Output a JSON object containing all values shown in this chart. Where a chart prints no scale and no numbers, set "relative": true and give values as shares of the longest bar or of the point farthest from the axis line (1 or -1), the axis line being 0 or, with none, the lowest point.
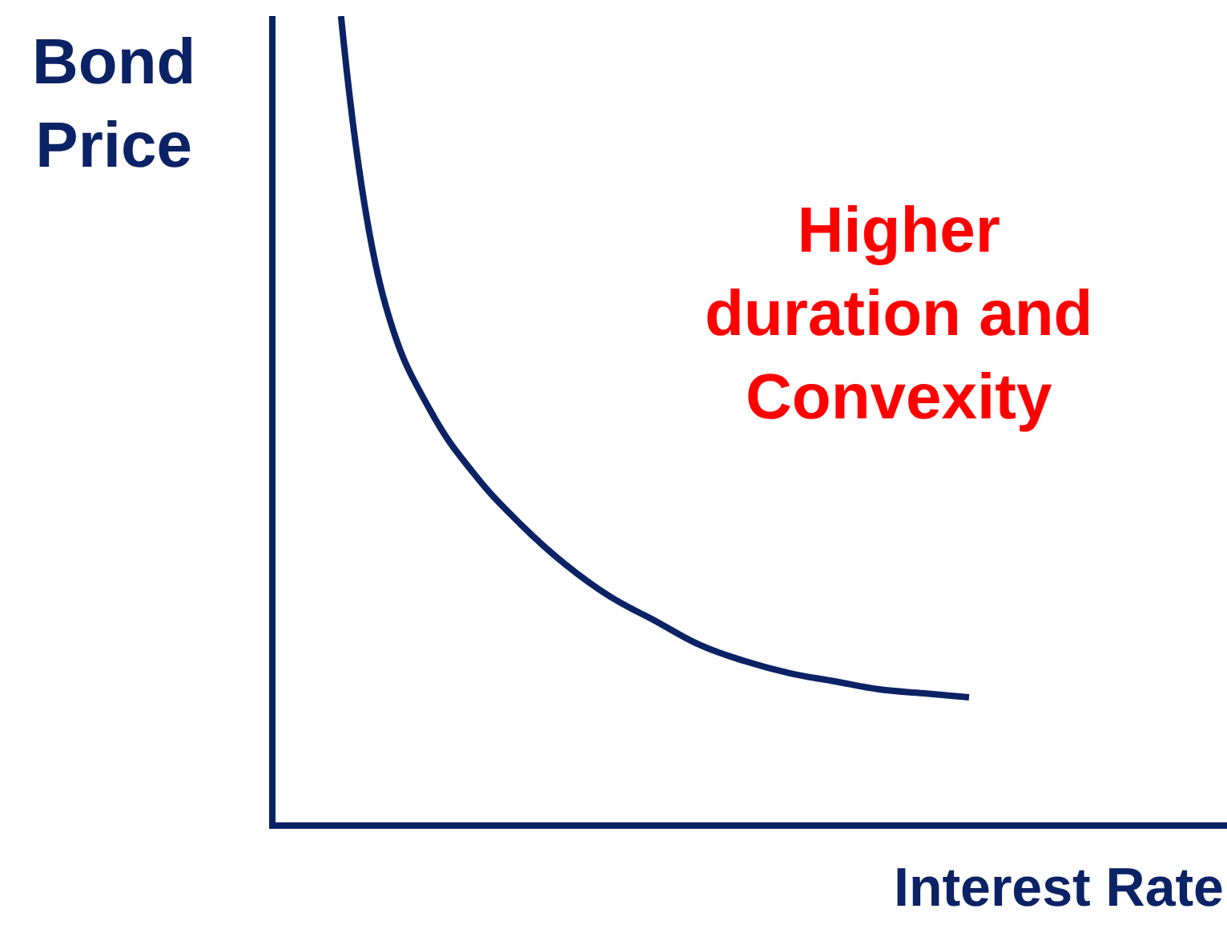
{
  "chart_data": {
    "type": "line",
    "relative": true,
    "xlabel": "Interest Rate",
    "ylabel": "Bond Price",
    "categories": [
      null,
      null,
      null,
      null,
      null,
      null,
      null,
      null,
      null,
      null,
      null,
      null,
      null,
      null,
      null
    ],
    "series": [
      {
        "color": "#0b2265",
        "values": [
          1,
          0.64,
          0.51,
          0.43,
          0.37,
          0.32,
          0.28,
          0.25,
          0.22,
          0.2,
          0.185,
          0.175,
          0.165,
          0.16,
          0.155
        ]
      }
    ],
    "annotations": [
      "Higher duration and Convexity"
    ]
  }
}
